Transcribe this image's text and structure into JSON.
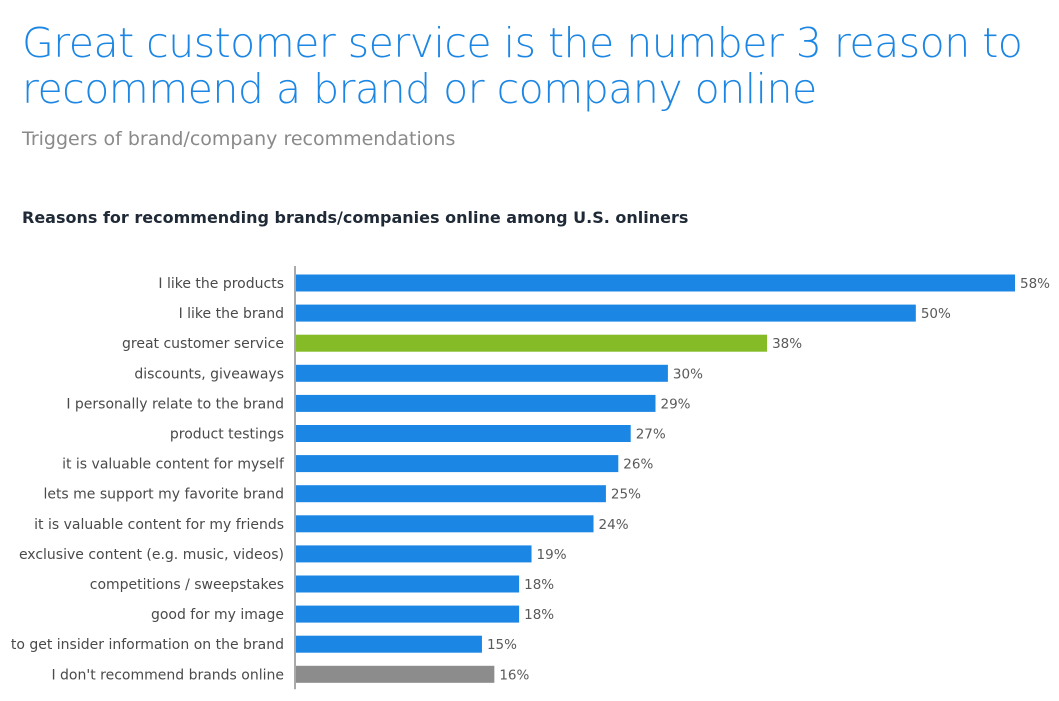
{
  "header": {
    "title": "Great customer service is the number 3 reason to recommend a brand or company online",
    "subtitle": "Triggers of brand/company recommendations"
  },
  "chart_data": {
    "type": "bar",
    "orientation": "horizontal",
    "title": "Reasons for recommending brands/companies online among U.S. onliners",
    "xlabel": "",
    "ylabel": "",
    "value_suffix": "%",
    "xlim": [
      0,
      58
    ],
    "grid": false,
    "categories": [
      "I like the products",
      "I like the brand",
      "great customer service",
      "discounts, giveaways",
      "I personally relate to the brand",
      "product testings",
      "it is valuable content for myself",
      "lets me support my favorite brand",
      "it is valuable content for my friends",
      "exclusive content (e.g. music, videos)",
      "competitions / sweepstakes",
      "good for my image",
      "to get insider information on the brand",
      "I don't recommend brands online"
    ],
    "values": [
      58,
      50,
      38,
      30,
      29,
      27,
      26,
      25,
      24,
      19,
      18,
      18,
      15,
      16
    ],
    "colors": {
      "default": "#1b86e3",
      "highlight": "#84bb26",
      "neutral": "#8c8c8c",
      "axis": "#555555"
    },
    "highlight_index": 2,
    "neutral_index": 13
  }
}
